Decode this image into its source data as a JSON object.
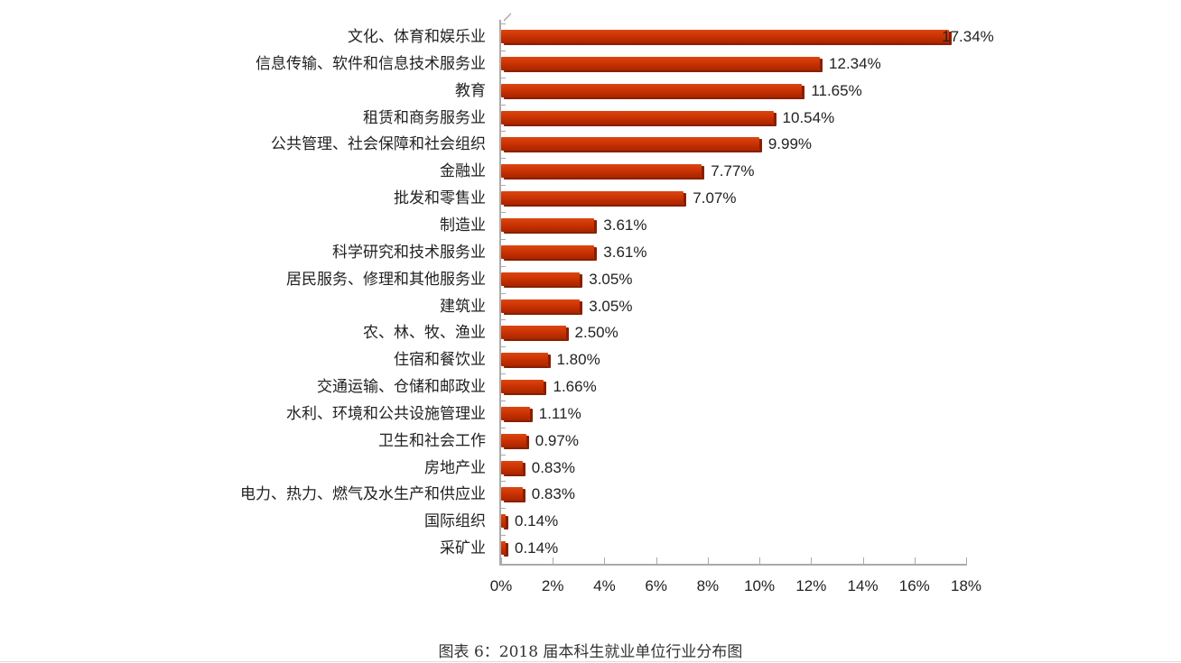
{
  "caption": "图表 6：2018 届本科生就业单位行业分布图",
  "chart_data": {
    "type": "bar",
    "orientation": "horizontal",
    "title": "图表 6：2018 届本科生就业单位行业分布图",
    "xlabel": "",
    "ylabel": "",
    "xlim": [
      0,
      18
    ],
    "x_ticks": [
      "0%",
      "2%",
      "4%",
      "6%",
      "8%",
      "10%",
      "12%",
      "14%",
      "16%",
      "18%"
    ],
    "grid": false,
    "legend": null,
    "bar_color": "#c73000",
    "categories": [
      "文化、体育和娱乐业",
      "信息传输、软件和信息技术服务业",
      "教育",
      "租赁和商务服务业",
      "公共管理、社会保障和社会组织",
      "金融业",
      "批发和零售业",
      "制造业",
      "科学研究和技术服务业",
      "居民服务、修理和其他服务业",
      "建筑业",
      "农、林、牧、渔业",
      "住宿和餐饮业",
      "交通运输、仓储和邮政业",
      "水利、环境和公共设施管理业",
      "卫生和社会工作",
      "房地产业",
      "电力、热力、燃气及水生产和供应业",
      "国际组织",
      "采矿业"
    ],
    "values": [
      17.34,
      12.34,
      11.65,
      10.54,
      9.99,
      7.77,
      7.07,
      3.61,
      3.61,
      3.05,
      3.05,
      2.5,
      1.8,
      1.66,
      1.11,
      0.97,
      0.83,
      0.83,
      0.14,
      0.14
    ],
    "value_labels": [
      "17.34%",
      "12.34%",
      "11.65%",
      "10.54%",
      "9.99%",
      "7.77%",
      "7.07%",
      "3.61%",
      "3.61%",
      "3.05%",
      "3.05%",
      "2.50%",
      "1.80%",
      "1.66%",
      "1.11%",
      "0.97%",
      "0.83%",
      "0.83%",
      "0.14%",
      "0.14%"
    ]
  }
}
